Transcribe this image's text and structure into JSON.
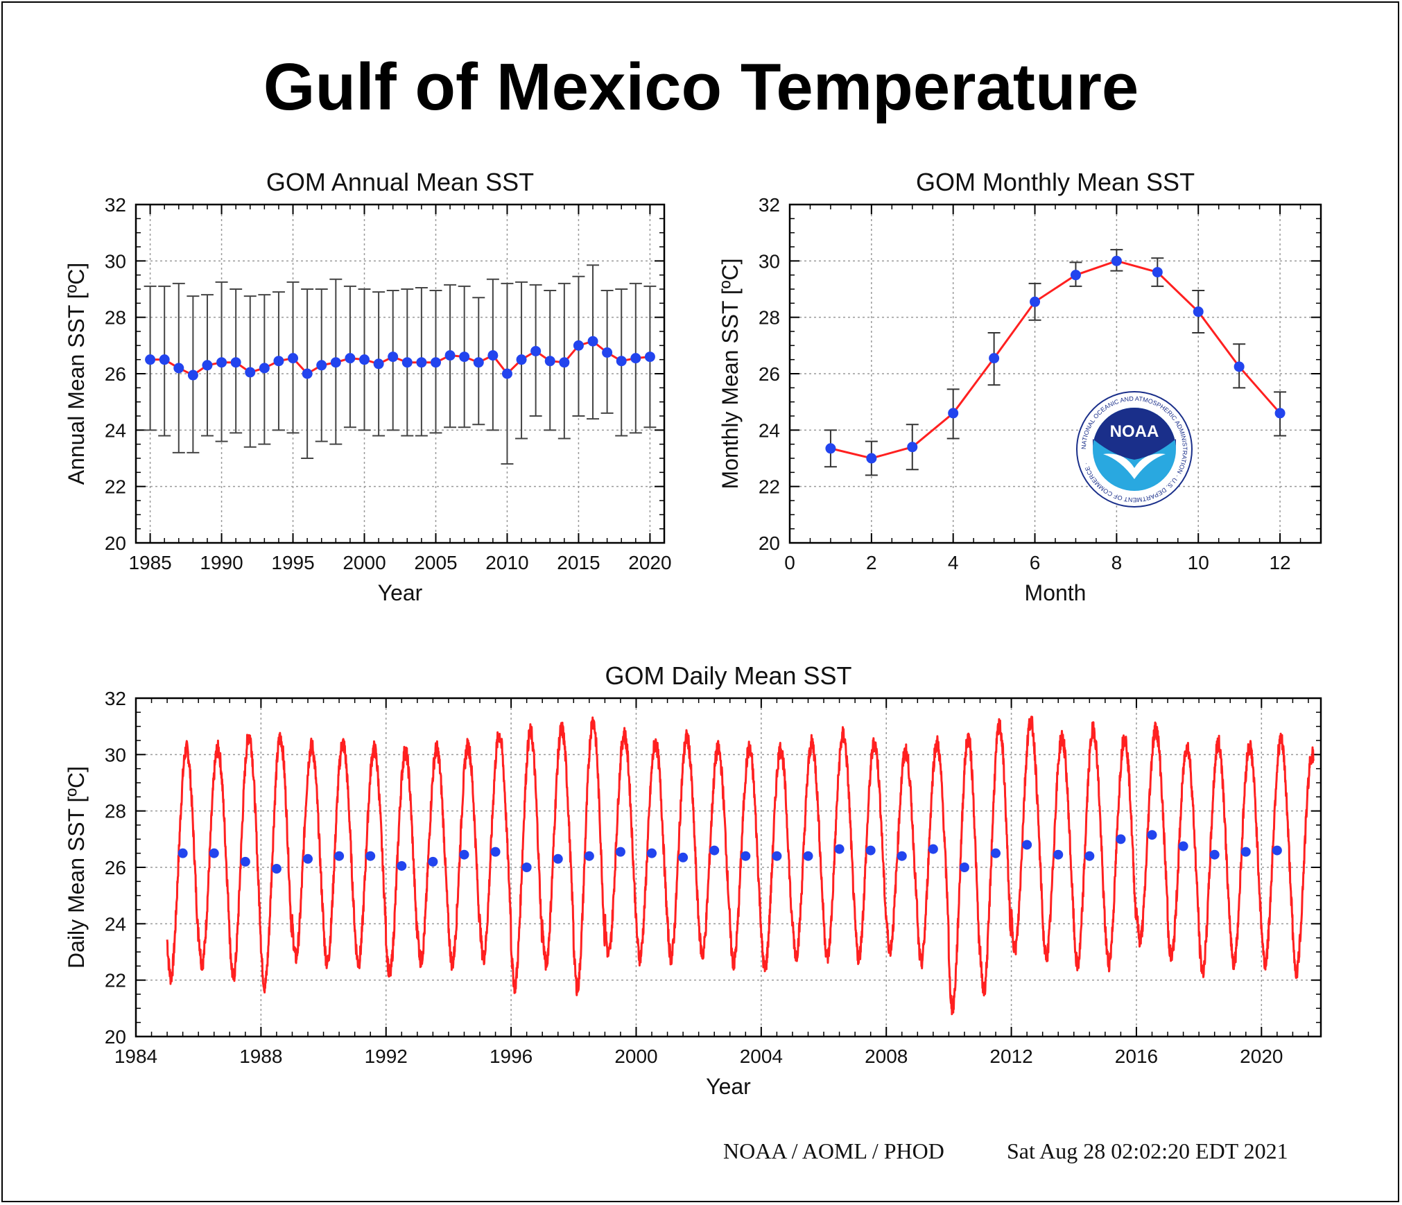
{
  "page": {
    "title": "Gulf of Mexico Temperature",
    "footer_left": "NOAA / AOML / PHOD",
    "footer_right": "Sat Aug 28 02:02:20 EDT 2021",
    "logo_text": "NOAA",
    "logo_ring_text": "NATIONAL OCEANIC AND ATMOSPHERIC ADMINISTRATION · U.S. DEPARTMENT OF COMMERCE ·"
  },
  "colors": {
    "line": "#ff2020",
    "point": "#2244ee",
    "errorbar": "#333333",
    "grid": "#999999",
    "logo_blue": "#1a2f8a",
    "logo_sky": "#29a8e0"
  },
  "chart_data": [
    {
      "type": "line",
      "title": "GOM Annual Mean SST",
      "xlabel": "Year",
      "ylabel": "Annual Mean SST [ºC]",
      "xlim": [
        1984,
        2021
      ],
      "ylim": [
        20,
        32
      ],
      "xticks": [
        1985,
        1990,
        1995,
        2000,
        2005,
        2010,
        2015,
        2020
      ],
      "yticks": [
        20,
        22,
        24,
        26,
        28,
        30,
        32
      ],
      "grid": true,
      "x": [
        1985,
        1986,
        1987,
        1988,
        1989,
        1990,
        1991,
        1992,
        1993,
        1994,
        1995,
        1996,
        1997,
        1998,
        1999,
        2000,
        2001,
        2002,
        2003,
        2004,
        2005,
        2006,
        2007,
        2008,
        2009,
        2010,
        2011,
        2012,
        2013,
        2014,
        2015,
        2016,
        2017,
        2018,
        2019,
        2020
      ],
      "y": [
        26.5,
        26.5,
        26.2,
        25.95,
        26.3,
        26.4,
        26.4,
        26.05,
        26.2,
        26.45,
        26.55,
        26.0,
        26.3,
        26.4,
        26.55,
        26.5,
        26.35,
        26.6,
        26.4,
        26.4,
        26.4,
        26.65,
        26.6,
        26.4,
        26.65,
        26.0,
        26.5,
        26.8,
        26.45,
        26.4,
        27.0,
        27.15,
        26.75,
        26.45,
        26.55,
        26.6
      ],
      "err_low": [
        24.0,
        23.8,
        23.2,
        23.2,
        23.8,
        23.6,
        23.9,
        23.4,
        23.5,
        24.0,
        23.9,
        23.0,
        23.6,
        23.5,
        24.1,
        24.0,
        23.8,
        24.0,
        23.8,
        23.8,
        23.9,
        24.1,
        24.1,
        24.2,
        24.0,
        22.8,
        23.7,
        24.5,
        24.0,
        23.7,
        24.5,
        24.4,
        24.6,
        23.8,
        23.9,
        24.1
      ],
      "err_high": [
        29.1,
        29.1,
        29.2,
        28.75,
        28.8,
        29.25,
        29.0,
        28.75,
        28.8,
        28.9,
        29.25,
        29.0,
        29.0,
        29.35,
        29.1,
        29.0,
        28.9,
        28.95,
        29.0,
        29.05,
        28.95,
        29.15,
        29.1,
        28.7,
        29.35,
        29.2,
        29.25,
        29.15,
        28.95,
        29.2,
        29.45,
        29.85,
        28.95,
        29.0,
        29.2,
        29.1
      ]
    },
    {
      "type": "line",
      "title": "GOM Monthly Mean SST",
      "xlabel": "Month",
      "ylabel": "Monthly Mean SST [ºC]",
      "xlim": [
        0,
        13
      ],
      "ylim": [
        20,
        32
      ],
      "xticks": [
        0,
        2,
        4,
        6,
        8,
        10,
        12
      ],
      "yticks": [
        20,
        22,
        24,
        26,
        28,
        30,
        32
      ],
      "grid": true,
      "x": [
        1,
        2,
        3,
        4,
        5,
        6,
        7,
        8,
        9,
        10,
        11,
        12
      ],
      "y": [
        23.35,
        23.0,
        23.4,
        24.6,
        26.55,
        28.55,
        29.5,
        30.0,
        29.6,
        28.2,
        26.25,
        24.6
      ],
      "err_low": [
        22.7,
        22.4,
        22.6,
        23.7,
        25.6,
        27.9,
        29.1,
        29.65,
        29.1,
        27.45,
        25.5,
        23.8
      ],
      "err_high": [
        24.0,
        23.6,
        24.2,
        25.45,
        27.45,
        29.2,
        29.95,
        30.4,
        30.1,
        28.95,
        27.05,
        25.35
      ]
    },
    {
      "type": "line",
      "title": "GOM Daily Mean SST",
      "xlabel": "Year",
      "ylabel": "Daily Mean SST [ºC]",
      "xlim": [
        1984,
        2021.9
      ],
      "ylim": [
        20,
        32
      ],
      "xticks": [
        1984,
        1988,
        1992,
        1996,
        2000,
        2004,
        2008,
        2012,
        2016,
        2020
      ],
      "yticks": [
        20,
        22,
        24,
        26,
        28,
        30,
        32
      ],
      "grid": true,
      "series": [
        {
          "type": "line",
          "start_year": 1985,
          "end_year": 2021.67,
          "yearly_min": [
            22.1,
            22.6,
            22.1,
            21.8,
            22.8,
            22.6,
            22.6,
            22.2,
            22.7,
            22.6,
            22.8,
            21.8,
            22.6,
            21.7,
            22.9,
            22.8,
            22.8,
            22.9,
            22.6,
            22.4,
            22.9,
            22.8,
            22.8,
            23.1,
            22.6,
            21.0,
            21.6,
            23.1,
            22.8,
            22.5,
            22.6,
            23.4,
            22.8,
            22.3,
            22.6,
            22.6,
            22.3
          ],
          "yearly_max": [
            30.2,
            30.2,
            30.7,
            30.6,
            30.3,
            30.4,
            30.2,
            30.1,
            30.2,
            30.3,
            30.7,
            30.8,
            30.9,
            31.2,
            30.7,
            30.4,
            30.6,
            30.2,
            30.2,
            30.2,
            30.4,
            30.7,
            30.4,
            30.1,
            30.4,
            30.6,
            31.0,
            31.2,
            30.6,
            30.9,
            30.6,
            30.9,
            30.3,
            30.4,
            30.3,
            30.5,
            30.0
          ]
        },
        {
          "type": "scatter",
          "x": [
            1985.5,
            1986.5,
            1987.5,
            1988.5,
            1989.5,
            1990.5,
            1991.5,
            1992.5,
            1993.5,
            1994.5,
            1995.5,
            1996.5,
            1997.5,
            1998.5,
            1999.5,
            2000.5,
            2001.5,
            2002.5,
            2003.5,
            2004.5,
            2005.5,
            2006.5,
            2007.5,
            2008.5,
            2009.5,
            2010.5,
            2011.5,
            2012.5,
            2013.5,
            2014.5,
            2015.5,
            2016.5,
            2017.5,
            2018.5,
            2019.5,
            2020.5
          ],
          "y": [
            26.5,
            26.5,
            26.2,
            25.95,
            26.3,
            26.4,
            26.4,
            26.05,
            26.2,
            26.45,
            26.55,
            26.0,
            26.3,
            26.4,
            26.55,
            26.5,
            26.35,
            26.6,
            26.4,
            26.4,
            26.4,
            26.65,
            26.6,
            26.4,
            26.65,
            26.0,
            26.5,
            26.8,
            26.45,
            26.4,
            27.0,
            27.15,
            26.75,
            26.45,
            26.55,
            26.6
          ]
        }
      ]
    }
  ]
}
